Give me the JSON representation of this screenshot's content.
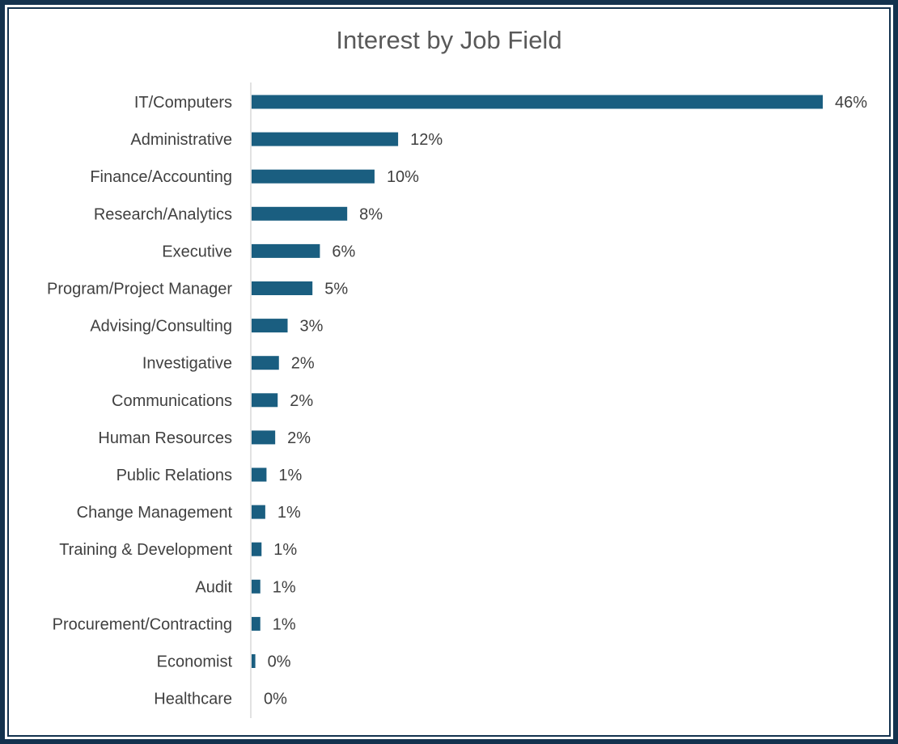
{
  "chart_data": {
    "type": "bar",
    "orientation": "horizontal",
    "title": "Interest by Job Field",
    "xlabel": "",
    "ylabel": "",
    "categories": [
      "IT/Computers",
      "Administrative",
      "Finance/Accounting",
      "Research/Analytics",
      "Executive",
      "Program/Project Manager",
      "Advising/Consulting",
      "Investigative",
      "Communications",
      "Human Resources",
      "Public Relations",
      "Change Management",
      "Training & Development",
      "Audit",
      "Procurement/Contracting",
      "Economist",
      "Healthcare"
    ],
    "values": [
      46,
      11.8,
      9.9,
      7.7,
      5.5,
      4.9,
      2.9,
      2.2,
      2.1,
      1.9,
      1.2,
      1.1,
      0.8,
      0.7,
      0.7,
      0.3,
      0.0
    ],
    "value_labels": [
      "46%",
      "12%",
      "10%",
      "8%",
      "6%",
      "5%",
      "3%",
      "2%",
      "2%",
      "2%",
      "1%",
      "1%",
      "1%",
      "1%",
      "1%",
      "0%",
      "0%"
    ],
    "xlim": [
      0,
      46
    ],
    "grid": false,
    "legend": "none",
    "bar_color": "#1a5e80",
    "axis_color": "#d9d9d9"
  }
}
